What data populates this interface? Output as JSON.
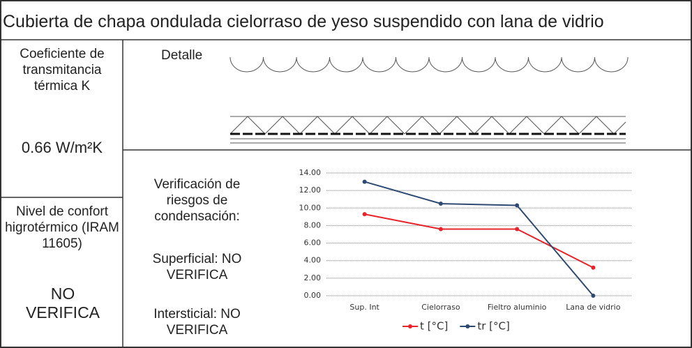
{
  "header": {
    "title": "Cubierta de chapa ondulada cielorraso de yeso suspendido con lana de vidrio"
  },
  "left": {
    "k_label": "Coeficiente de transmitancia térmica K",
    "k_value": "0.66 W/m²K",
    "comfort_label": "Nivel de confort higrotérmico (IRAM 11605)",
    "comfort_value": "NO VERIFICA"
  },
  "detail": {
    "label": "Detalle"
  },
  "verification": {
    "title": "Verificación de riesgos de condensación:",
    "superficial": "Superficial: NO VERIFICA",
    "interstitial": "Intersticial: NO VERIFICA"
  },
  "chart_data": {
    "type": "line",
    "categories": [
      "Sup. Int",
      "Cielorraso",
      "Fieltro aluminio",
      "Lana de vidrio"
    ],
    "series": [
      {
        "name": "t [°C]",
        "color": "#e8232a",
        "values": [
          9.3,
          7.6,
          7.6,
          3.2
        ]
      },
      {
        "name": "tr [°C]",
        "color": "#2e4a72",
        "values": [
          13.0,
          10.5,
          10.3,
          0.0
        ]
      }
    ],
    "ylim": [
      0,
      14
    ],
    "yticks": [
      {
        "value": 0,
        "label": "0.00"
      },
      {
        "value": 2,
        "label": "2.00"
      },
      {
        "value": 4,
        "label": "4.00"
      },
      {
        "value": 6,
        "label": "6.00"
      },
      {
        "value": 8,
        "label": "8.00"
      },
      {
        "value": 10,
        "label": "10.00"
      },
      {
        "value": 12,
        "label": "12.00"
      },
      {
        "value": 14,
        "label": "14.00"
      }
    ],
    "grid": true,
    "legend": "bottom"
  }
}
